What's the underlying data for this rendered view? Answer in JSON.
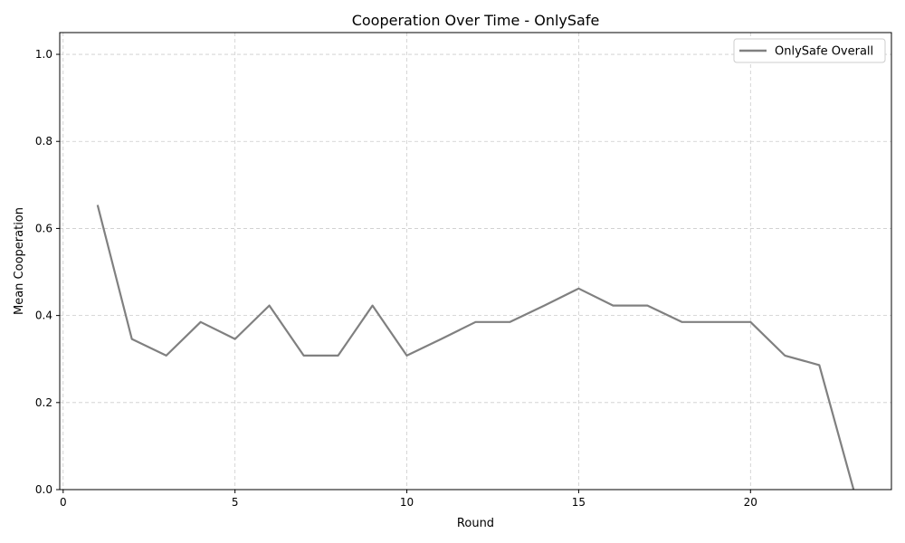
{
  "chart_data": {
    "type": "line",
    "title": "Cooperation Over Time - OnlySafe",
    "xlabel": "Round",
    "ylabel": "Mean Cooperation",
    "xlim": [
      -0.1,
      24.1
    ],
    "ylim": [
      0,
      1.05
    ],
    "xticks": [
      0,
      5,
      10,
      15,
      20
    ],
    "yticks": [
      0.0,
      0.2,
      0.4,
      0.6,
      0.8,
      1.0
    ],
    "xtick_labels": [
      "0",
      "5",
      "10",
      "15",
      "20"
    ],
    "ytick_labels": [
      "0.0",
      "0.2",
      "0.4",
      "0.6",
      "0.8",
      "1.0"
    ],
    "grid": true,
    "legend_position": "top-right",
    "series": [
      {
        "name": "OnlySafe Overall",
        "color": "#808080",
        "x": [
          1,
          2,
          3,
          4,
          5,
          6,
          7,
          8,
          9,
          10,
          11,
          12,
          13,
          14,
          15,
          16,
          17,
          18,
          19,
          20,
          21,
          22,
          23
        ],
        "y": [
          0.654,
          0.346,
          0.308,
          0.385,
          0.346,
          0.423,
          0.308,
          0.308,
          0.423,
          0.308,
          0.346,
          0.385,
          0.385,
          0.423,
          0.462,
          0.423,
          0.423,
          0.385,
          0.385,
          0.385,
          0.308,
          0.286,
          0.0
        ]
      }
    ]
  }
}
